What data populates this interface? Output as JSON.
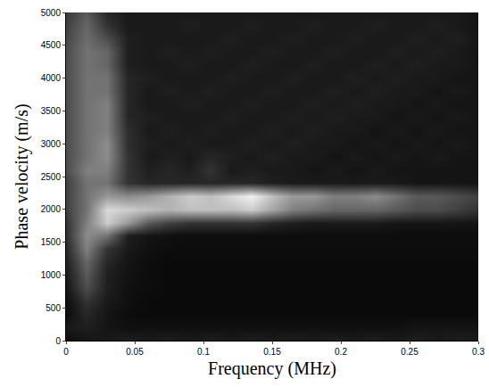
{
  "chart_data": {
    "type": "heatmap",
    "x_label": "Frequency (MHz)",
    "y_label": "Phase velocity (m/s)",
    "x": [
      0,
      0.015,
      0.03,
      0.045,
      0.06,
      0.075,
      0.09,
      0.105,
      0.12,
      0.135,
      0.15,
      0.165,
      0.18,
      0.195,
      0.21,
      0.225,
      0.24,
      0.255,
      0.27,
      0.285,
      0.3
    ],
    "y": [
      0,
      200,
      400,
      600,
      800,
      1000,
      1200,
      1400,
      1600,
      1800,
      2000,
      2200,
      2400,
      2600,
      2800,
      3000,
      3200,
      3400,
      3600,
      3800,
      4000,
      4200,
      4400,
      4600,
      4800,
      5000
    ],
    "z": [
      [
        0.05,
        0.08,
        0.1,
        0.12,
        0.1,
        0.12,
        0.1,
        0.12,
        0.1,
        0.12,
        0.1,
        0.12,
        0.1,
        0.12,
        0.1,
        0.12,
        0.1,
        0.12,
        0.1,
        0.12,
        0.1
      ],
      [
        0.1,
        0.12,
        0.08,
        0.06,
        0.06,
        0.06,
        0.06,
        0.06,
        0.06,
        0.06,
        0.06,
        0.06,
        0.06,
        0.06,
        0.06,
        0.06,
        0.06,
        0.08,
        0.08,
        0.08,
        0.08
      ],
      [
        0.05,
        0.15,
        0.08,
        0.05,
        0.04,
        0.04,
        0.04,
        0.04,
        0.04,
        0.04,
        0.04,
        0.04,
        0.04,
        0.04,
        0.04,
        0.04,
        0.04,
        0.04,
        0.04,
        0.04,
        0.04
      ],
      [
        0.05,
        0.2,
        0.1,
        0.06,
        0.04,
        0.04,
        0.04,
        0.04,
        0.04,
        0.04,
        0.04,
        0.04,
        0.04,
        0.04,
        0.04,
        0.04,
        0.04,
        0.04,
        0.04,
        0.04,
        0.04
      ],
      [
        0.08,
        0.3,
        0.12,
        0.06,
        0.05,
        0.04,
        0.04,
        0.04,
        0.04,
        0.04,
        0.04,
        0.04,
        0.04,
        0.04,
        0.04,
        0.04,
        0.04,
        0.04,
        0.04,
        0.04,
        0.04
      ],
      [
        0.1,
        0.35,
        0.12,
        0.07,
        0.05,
        0.04,
        0.04,
        0.04,
        0.04,
        0.04,
        0.04,
        0.04,
        0.04,
        0.04,
        0.04,
        0.04,
        0.04,
        0.04,
        0.04,
        0.04,
        0.04
      ],
      [
        0.12,
        0.4,
        0.15,
        0.08,
        0.05,
        0.04,
        0.04,
        0.04,
        0.04,
        0.04,
        0.04,
        0.04,
        0.04,
        0.04,
        0.04,
        0.04,
        0.04,
        0.04,
        0.04,
        0.04,
        0.04
      ],
      [
        0.15,
        0.5,
        0.2,
        0.1,
        0.06,
        0.05,
        0.05,
        0.05,
        0.05,
        0.05,
        0.05,
        0.05,
        0.05,
        0.05,
        0.05,
        0.05,
        0.05,
        0.05,
        0.05,
        0.05,
        0.05
      ],
      [
        0.18,
        0.55,
        0.45,
        0.12,
        0.08,
        0.06,
        0.05,
        0.05,
        0.05,
        0.05,
        0.05,
        0.05,
        0.05,
        0.05,
        0.05,
        0.05,
        0.05,
        0.05,
        0.05,
        0.05,
        0.05
      ],
      [
        0.2,
        0.5,
        0.8,
        0.6,
        0.35,
        0.25,
        0.2,
        0.2,
        0.2,
        0.2,
        0.15,
        0.12,
        0.1,
        0.1,
        0.1,
        0.1,
        0.08,
        0.08,
        0.08,
        0.08,
        0.08
      ],
      [
        0.25,
        0.45,
        0.85,
        0.8,
        0.75,
        0.7,
        0.75,
        0.75,
        0.75,
        0.8,
        0.65,
        0.5,
        0.45,
        0.4,
        0.4,
        0.4,
        0.35,
        0.3,
        0.3,
        0.25,
        0.2
      ],
      [
        0.25,
        0.45,
        0.6,
        0.55,
        0.6,
        0.7,
        0.8,
        0.75,
        0.85,
        0.95,
        0.75,
        0.6,
        0.6,
        0.5,
        0.5,
        0.55,
        0.45,
        0.35,
        0.35,
        0.3,
        0.25
      ],
      [
        0.25,
        0.45,
        0.45,
        0.2,
        0.15,
        0.15,
        0.15,
        0.15,
        0.15,
        0.15,
        0.12,
        0.1,
        0.1,
        0.1,
        0.1,
        0.1,
        0.1,
        0.08,
        0.08,
        0.08,
        0.08
      ],
      [
        0.3,
        0.5,
        0.5,
        0.2,
        0.12,
        0.15,
        0.12,
        0.2,
        0.1,
        0.12,
        0.1,
        0.1,
        0.08,
        0.1,
        0.08,
        0.1,
        0.08,
        0.08,
        0.08,
        0.08,
        0.08
      ],
      [
        0.3,
        0.45,
        0.55,
        0.2,
        0.1,
        0.12,
        0.1,
        0.15,
        0.12,
        0.1,
        0.12,
        0.1,
        0.1,
        0.08,
        0.1,
        0.08,
        0.1,
        0.08,
        0.1,
        0.08,
        0.08
      ],
      [
        0.3,
        0.45,
        0.55,
        0.18,
        0.12,
        0.1,
        0.12,
        0.1,
        0.1,
        0.12,
        0.1,
        0.12,
        0.1,
        0.1,
        0.08,
        0.1,
        0.08,
        0.1,
        0.08,
        0.1,
        0.08
      ],
      [
        0.3,
        0.45,
        0.5,
        0.18,
        0.1,
        0.12,
        0.1,
        0.12,
        0.1,
        0.1,
        0.12,
        0.1,
        0.12,
        0.1,
        0.1,
        0.08,
        0.1,
        0.08,
        0.1,
        0.08,
        0.08
      ],
      [
        0.3,
        0.45,
        0.5,
        0.15,
        0.12,
        0.1,
        0.1,
        0.1,
        0.12,
        0.1,
        0.1,
        0.12,
        0.1,
        0.12,
        0.1,
        0.1,
        0.08,
        0.1,
        0.08,
        0.1,
        0.08
      ],
      [
        0.3,
        0.45,
        0.5,
        0.15,
        0.1,
        0.1,
        0.12,
        0.1,
        0.1,
        0.12,
        0.1,
        0.1,
        0.12,
        0.1,
        0.12,
        0.1,
        0.1,
        0.08,
        0.1,
        0.08,
        0.08
      ],
      [
        0.3,
        0.45,
        0.45,
        0.15,
        0.1,
        0.12,
        0.1,
        0.12,
        0.1,
        0.1,
        0.12,
        0.1,
        0.1,
        0.12,
        0.1,
        0.12,
        0.1,
        0.1,
        0.08,
        0.1,
        0.08
      ],
      [
        0.3,
        0.45,
        0.45,
        0.15,
        0.12,
        0.1,
        0.1,
        0.1,
        0.12,
        0.1,
        0.1,
        0.12,
        0.1,
        0.1,
        0.12,
        0.1,
        0.12,
        0.1,
        0.1,
        0.08,
        0.08
      ],
      [
        0.3,
        0.45,
        0.4,
        0.12,
        0.1,
        0.1,
        0.12,
        0.1,
        0.1,
        0.12,
        0.1,
        0.1,
        0.12,
        0.1,
        0.1,
        0.12,
        0.1,
        0.12,
        0.1,
        0.1,
        0.08
      ],
      [
        0.3,
        0.45,
        0.4,
        0.12,
        0.1,
        0.12,
        0.1,
        0.12,
        0.1,
        0.1,
        0.12,
        0.1,
        0.1,
        0.12,
        0.1,
        0.1,
        0.12,
        0.1,
        0.12,
        0.1,
        0.08
      ],
      [
        0.28,
        0.42,
        0.3,
        0.12,
        0.1,
        0.1,
        0.1,
        0.1,
        0.12,
        0.1,
        0.1,
        0.12,
        0.1,
        0.1,
        0.12,
        0.1,
        0.1,
        0.12,
        0.1,
        0.12,
        0.08
      ],
      [
        0.25,
        0.4,
        0.2,
        0.1,
        0.1,
        0.1,
        0.12,
        0.1,
        0.1,
        0.12,
        0.1,
        0.1,
        0.12,
        0.1,
        0.1,
        0.12,
        0.1,
        0.1,
        0.12,
        0.1,
        0.08
      ],
      [
        0.22,
        0.35,
        0.15,
        0.1,
        0.1,
        0.1,
        0.1,
        0.1,
        0.1,
        0.1,
        0.1,
        0.1,
        0.1,
        0.1,
        0.1,
        0.1,
        0.1,
        0.1,
        0.1,
        0.1,
        0.08
      ]
    ],
    "zlim": [
      0,
      1
    ],
    "colors": [
      "#000000",
      "#ffffff"
    ],
    "xlim": [
      0,
      0.3
    ],
    "ylim": [
      0,
      5000
    ],
    "xticks": [
      0,
      0.05,
      0.1,
      0.15,
      0.2,
      0.25,
      0.3
    ],
    "yticks": [
      0,
      500,
      1000,
      1500,
      2000,
      2500,
      3000,
      3500,
      4000,
      4500,
      5000
    ]
  }
}
